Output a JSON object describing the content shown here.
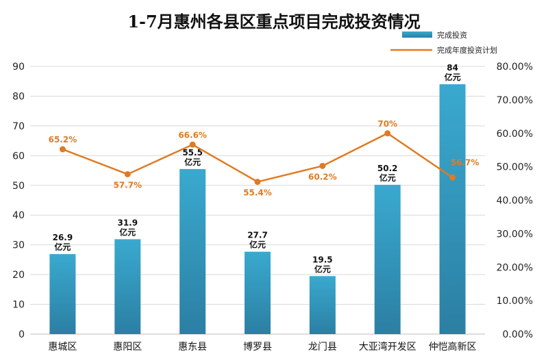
{
  "chart_data": {
    "type": "bar",
    "title": "1-7月惠州各县区重点项目完成投资情况",
    "categories": [
      "惠城区",
      "惠阳区",
      "惠东县",
      "博罗县",
      "龙门县",
      "大亚湾开发区",
      "仲恺高新区"
    ],
    "series": [
      {
        "name": "完成投资",
        "type": "bar",
        "axis": "left",
        "values": [
          26.9,
          31.9,
          55.5,
          27.7,
          19.5,
          50.2,
          84
        ],
        "labels": [
          "26.9",
          "31.9",
          "55.5",
          "27.7",
          "19.5",
          "50.2",
          "84"
        ],
        "unit": "亿元"
      },
      {
        "name": "完成年度投资计划",
        "type": "line",
        "axis": "right",
        "values": [
          65.2,
          57.7,
          66.6,
          55.4,
          60.2,
          70,
          56.7
        ],
        "labels": [
          "65.2%",
          "57.7%",
          "66.6%",
          "55.4%",
          "60.2%",
          "70%",
          "56.7%"
        ]
      }
    ],
    "y_left": {
      "min": 0,
      "max": 90,
      "ticks": [
        "0",
        "10",
        "20",
        "30",
        "40",
        "50",
        "60",
        "70",
        "80",
        "90"
      ]
    },
    "y_right": {
      "min": 0,
      "max": 80,
      "ticks": [
        "0.00%",
        "10.00%",
        "20.00%",
        "30.00%",
        "40.00%",
        "50.00%",
        "60.00%",
        "70.00%",
        "80.00%"
      ]
    },
    "line_mapping": {
      "points": [
        [
          55.4,
          45.5
        ],
        [
          70,
          60
        ]
      ]
    },
    "grid": true,
    "legend": "top-right",
    "colors": {
      "bar_top": "#3aa9cf",
      "bar_bottom": "#2b7fa3",
      "line": "#e07b22",
      "grid": "#d9d9d9"
    }
  }
}
